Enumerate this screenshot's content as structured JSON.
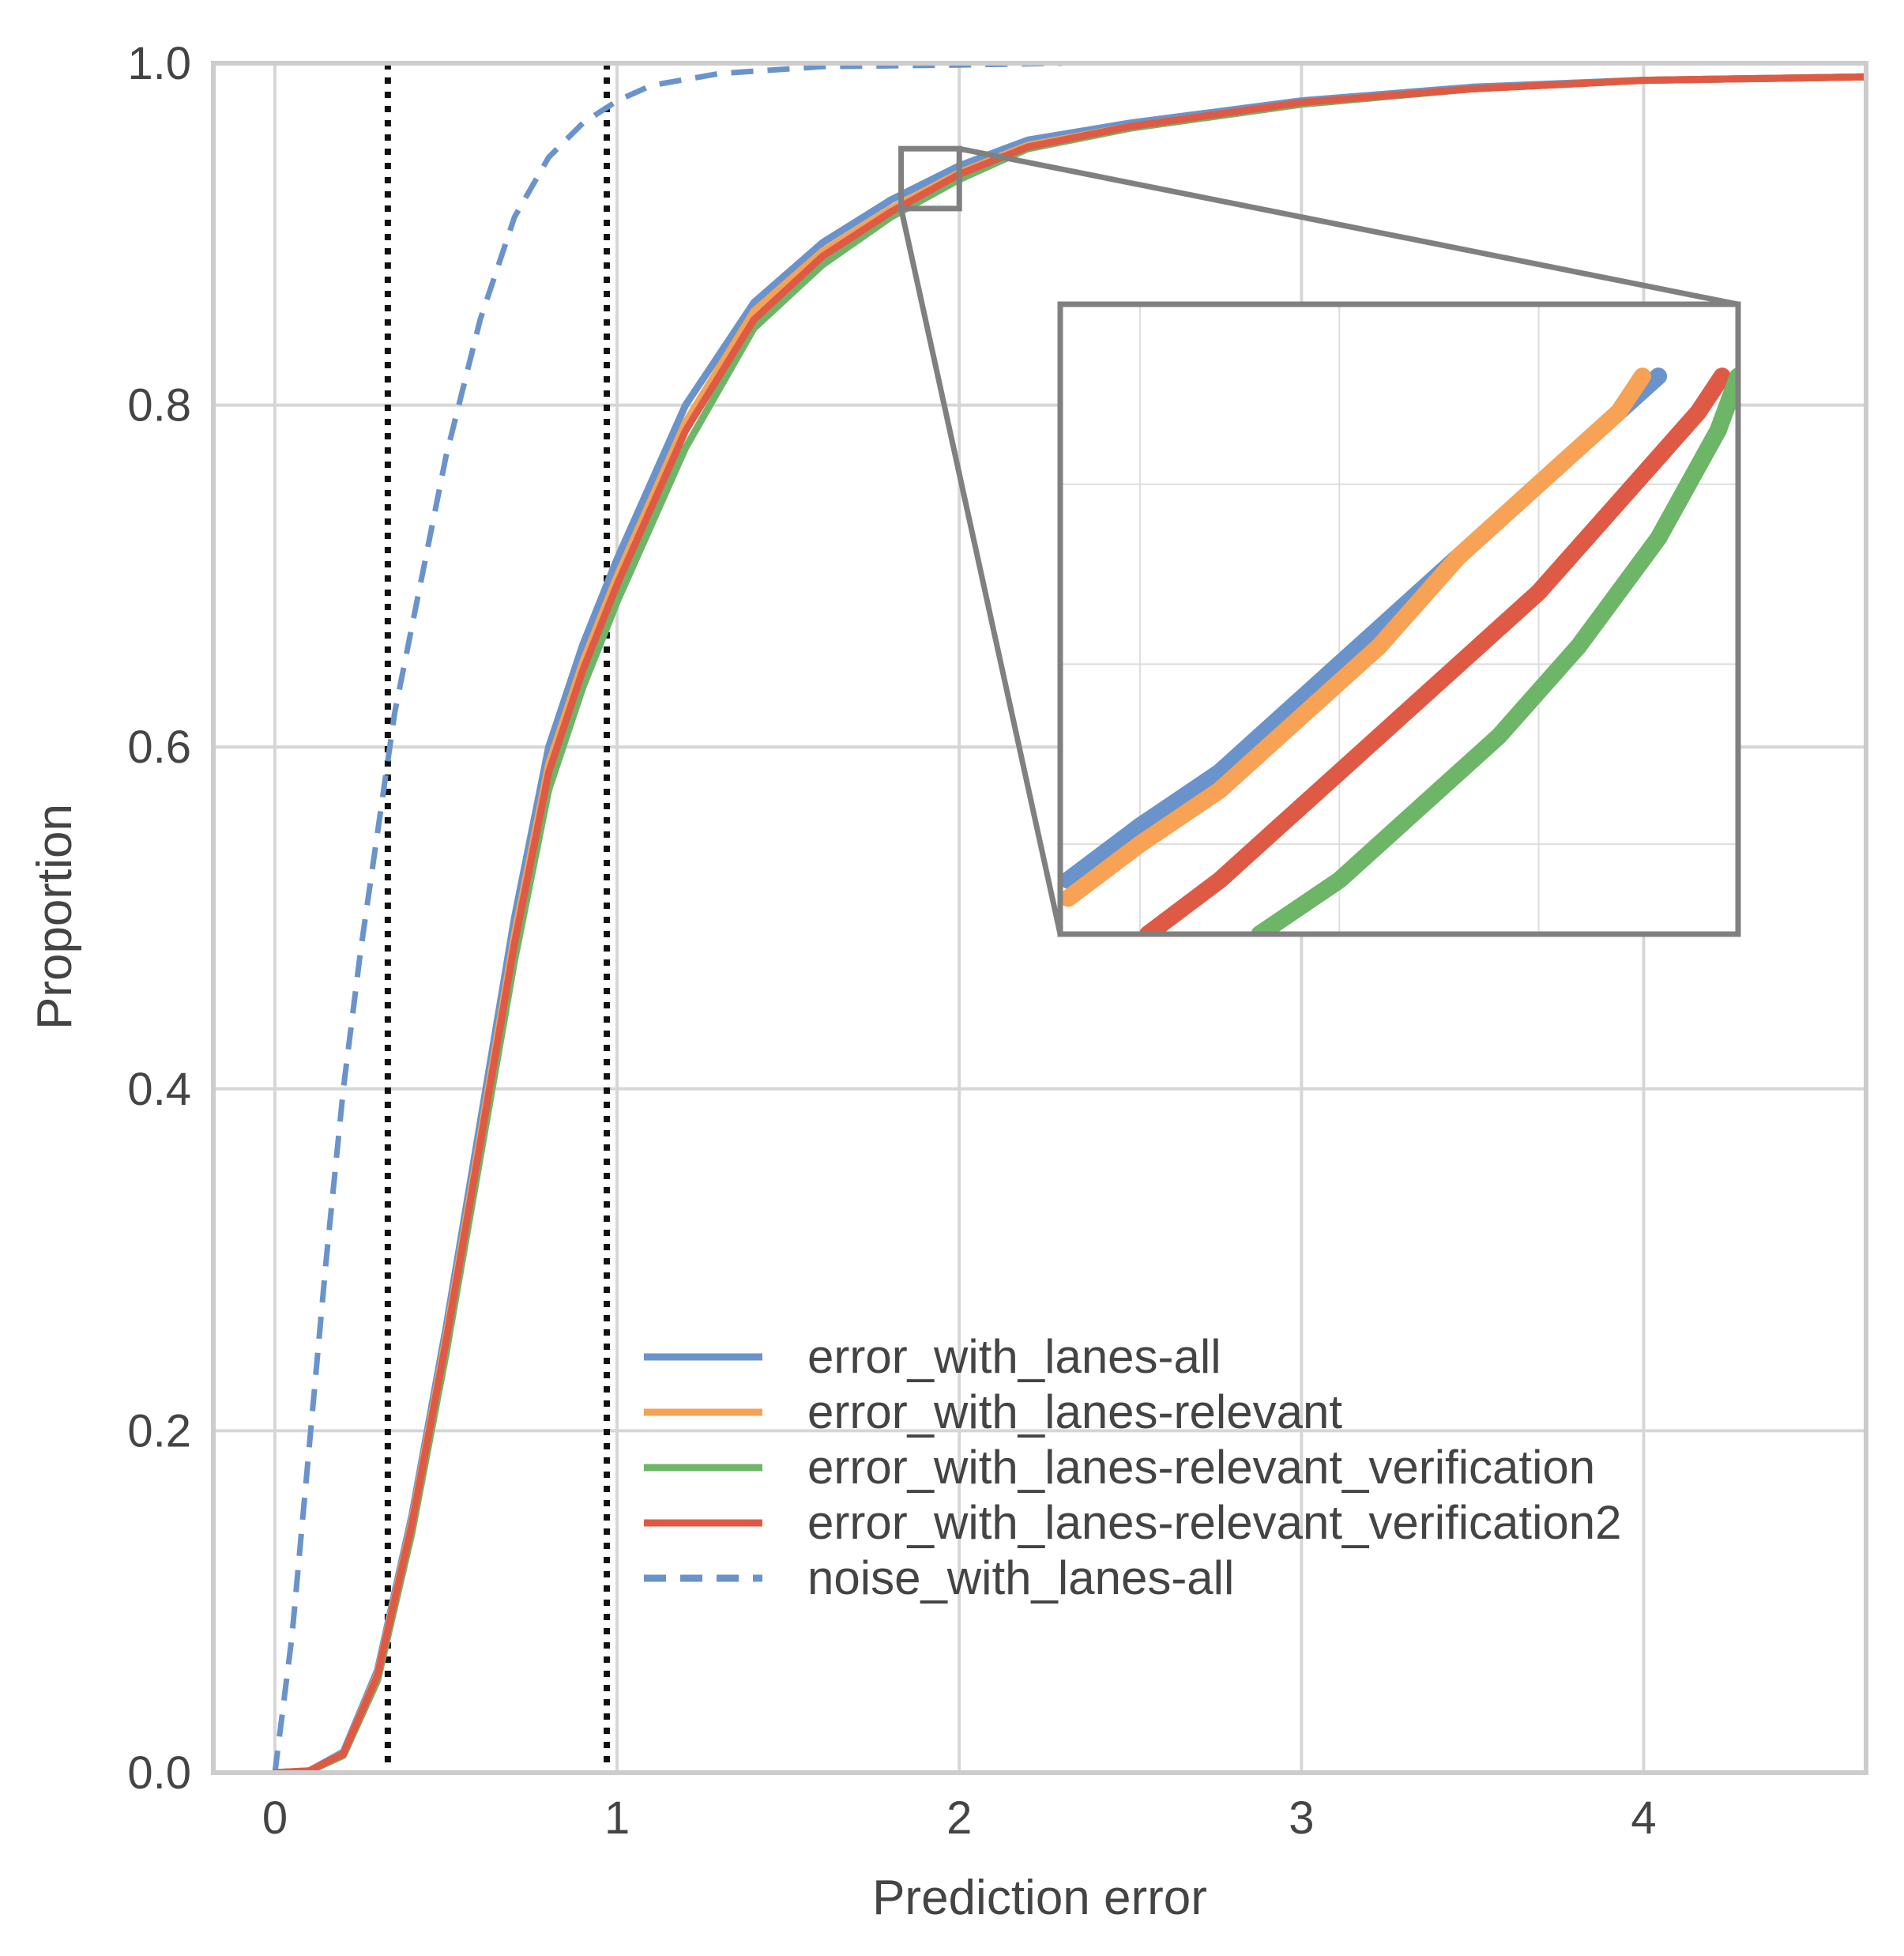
{
  "chart_data": {
    "type": "line",
    "title": "",
    "xlabel": "Prediction error",
    "ylabel": "Proportion",
    "xlim": [
      -0.18,
      4.65
    ],
    "ylim": [
      0,
      1
    ],
    "xticks": [
      "0",
      "1",
      "2",
      "3",
      "4"
    ],
    "yticks": [
      "0.0",
      "0.2",
      "0.4",
      "0.6",
      "0.8",
      "1.0"
    ],
    "grid": true,
    "legend_position": "lower-right",
    "reference_lines_x": [
      0.33,
      0.97
    ],
    "series": [
      {
        "name": "error_with_lanes-all",
        "color": "#6a93cb",
        "style": "solid",
        "x": [
          0,
          0.1,
          0.2,
          0.3,
          0.4,
          0.5,
          0.6,
          0.7,
          0.8,
          0.9,
          1.0,
          1.2,
          1.4,
          1.6,
          1.8,
          2.0,
          2.2,
          2.5,
          3.0,
          3.5,
          4.0,
          4.65
        ],
        "y": [
          0,
          0.001,
          0.012,
          0.06,
          0.15,
          0.26,
          0.38,
          0.5,
          0.6,
          0.66,
          0.71,
          0.8,
          0.86,
          0.895,
          0.92,
          0.94,
          0.955,
          0.965,
          0.978,
          0.986,
          0.99,
          0.992
        ]
      },
      {
        "name": "error_with_lanes-relevant",
        "color": "#f7a255",
        "style": "solid",
        "x": [
          0,
          0.1,
          0.2,
          0.3,
          0.4,
          0.5,
          0.6,
          0.7,
          0.8,
          0.9,
          1.0,
          1.2,
          1.4,
          1.6,
          1.8,
          2.0,
          2.2,
          2.5,
          3.0,
          3.5,
          4.0,
          4.65
        ],
        "y": [
          0,
          0.001,
          0.011,
          0.058,
          0.147,
          0.255,
          0.372,
          0.49,
          0.59,
          0.65,
          0.7,
          0.79,
          0.855,
          0.89,
          0.915,
          0.936,
          0.952,
          0.963,
          0.977,
          0.985,
          0.99,
          0.992
        ]
      },
      {
        "name": "error_with_lanes-relevant_verification",
        "color": "#6db667",
        "style": "solid",
        "x": [
          0,
          0.1,
          0.2,
          0.3,
          0.4,
          0.5,
          0.6,
          0.7,
          0.8,
          0.9,
          1.0,
          1.2,
          1.4,
          1.6,
          1.8,
          2.0,
          2.2,
          2.5,
          3.0,
          3.5,
          4.0,
          4.65
        ],
        "y": [
          0,
          0.001,
          0.01,
          0.054,
          0.14,
          0.245,
          0.36,
          0.475,
          0.575,
          0.635,
          0.685,
          0.775,
          0.845,
          0.882,
          0.91,
          0.932,
          0.95,
          0.962,
          0.976,
          0.985,
          0.99,
          0.992
        ]
      },
      {
        "name": "error_with_lanes-relevant_verification2",
        "color": "#df5a45",
        "style": "solid",
        "x": [
          0,
          0.1,
          0.2,
          0.3,
          0.4,
          0.5,
          0.6,
          0.7,
          0.8,
          0.9,
          1.0,
          1.2,
          1.4,
          1.6,
          1.8,
          2.0,
          2.2,
          2.5,
          3.0,
          3.5,
          4.0,
          4.65
        ],
        "y": [
          0,
          0.001,
          0.011,
          0.057,
          0.145,
          0.252,
          0.368,
          0.485,
          0.585,
          0.645,
          0.695,
          0.785,
          0.85,
          0.887,
          0.913,
          0.935,
          0.951,
          0.963,
          0.977,
          0.985,
          0.99,
          0.992
        ]
      },
      {
        "name": "noise_with_lanes-all",
        "color": "#6a93cb",
        "style": "dashed",
        "x": [
          0,
          0.05,
          0.1,
          0.15,
          0.2,
          0.25,
          0.3,
          0.35,
          0.4,
          0.5,
          0.6,
          0.7,
          0.8,
          0.9,
          1.0,
          1.1,
          1.3,
          1.6,
          2.0,
          2.3
        ],
        "y": [
          0,
          0.08,
          0.19,
          0.3,
          0.4,
          0.48,
          0.55,
          0.62,
          0.67,
          0.77,
          0.85,
          0.91,
          0.945,
          0.965,
          0.978,
          0.987,
          0.994,
          0.998,
          0.999,
          1.0
        ]
      }
    ],
    "inset": {
      "source_region": {
        "x": [
          1.83,
          2.0
        ],
        "y": [
          0.915,
          0.95
        ]
      },
      "series": [
        {
          "name": "error_with_lanes-all",
          "color": "#6a93cb",
          "x": [
            1.832,
            1.85,
            1.87,
            1.89,
            1.91,
            1.93,
            1.95,
            1.97,
            1.98
          ],
          "y": [
            0.918,
            0.921,
            0.924,
            0.928,
            0.932,
            0.936,
            0.94,
            0.944,
            0.946
          ]
        },
        {
          "name": "error_with_lanes-relevant",
          "color": "#f7a255",
          "x": [
            1.832,
            1.85,
            1.87,
            1.89,
            1.91,
            1.93,
            1.95,
            1.97,
            1.976
          ],
          "y": [
            0.917,
            0.92,
            0.923,
            0.927,
            0.931,
            0.936,
            0.94,
            0.944,
            0.946
          ]
        },
        {
          "name": "error_with_lanes-relevant_verification2",
          "color": "#df5a45",
          "x": [
            1.852,
            1.87,
            1.89,
            1.91,
            1.93,
            1.95,
            1.97,
            1.99,
            1.996
          ],
          "y": [
            0.915,
            0.918,
            0.922,
            0.926,
            0.93,
            0.934,
            0.939,
            0.944,
            0.946
          ]
        },
        {
          "name": "error_with_lanes-relevant_verification",
          "color": "#6db667",
          "x": [
            1.88,
            1.9,
            1.92,
            1.94,
            1.96,
            1.98,
            1.995,
            2.0
          ],
          "y": [
            0.915,
            0.918,
            0.922,
            0.926,
            0.931,
            0.937,
            0.943,
            0.946
          ]
        }
      ]
    }
  }
}
